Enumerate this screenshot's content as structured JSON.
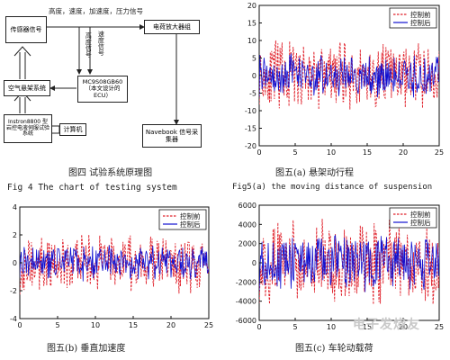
{
  "diagram": {
    "signals_top": "高度，速度，加速度，压力信号",
    "sensor_box": "传感器信号",
    "amp_box": "电荷放大器组",
    "height_signal": "高度信号",
    "speed_signal": "速度信号",
    "air_susp_box": "空气悬架系统",
    "ecu_box": "MC9S08GB60（本文设计的ECU）",
    "instron_box": "Instron8800 型岩控电液伺服试验系统",
    "computer_box": "计算机",
    "navebook_box": "Navebook 信号采集器",
    "caption_cn": "图四 试验系统原理图",
    "caption_en": "Fig 4 The chart of testing system"
  },
  "chart_data": [
    {
      "type": "line",
      "caption_cn": "图五(a) 悬架动行程",
      "caption_en": "Fig5(a) the moving distance of suspension",
      "xlim": [
        0,
        25
      ],
      "ylim": [
        -20,
        20
      ],
      "xticks": [
        "0",
        "5",
        "10",
        "15",
        "20",
        "25"
      ],
      "yticks": [
        "20",
        "15",
        "10",
        "5",
        "0",
        "-5",
        "-10",
        "-15",
        "-20"
      ],
      "legend_position": "top-right",
      "series": [
        {
          "name": "控制前",
          "color": "#e0202a",
          "dash": true,
          "amp": 11,
          "seed": 11
        },
        {
          "name": "控制后",
          "color": "#1010d0",
          "dash": false,
          "amp": 6.5,
          "seed": 37
        }
      ]
    },
    {
      "type": "line",
      "caption_cn": "图五(b) 垂直加速度",
      "xlim": [
        0,
        25
      ],
      "ylim": [
        -4,
        4
      ],
      "xticks": [
        "0",
        "5",
        "10",
        "15",
        "20",
        "25"
      ],
      "yticks": [
        "4",
        "2",
        "0",
        "-2",
        "-4"
      ],
      "legend_position": "top-right",
      "series": [
        {
          "name": "控制前",
          "color": "#e0202a",
          "dash": true,
          "amp": 2.3,
          "seed": 53
        },
        {
          "name": "控制后",
          "color": "#1010d0",
          "dash": false,
          "amp": 1.5,
          "seed": 71
        }
      ]
    },
    {
      "type": "line",
      "caption_cn": "图五(c) 车轮动载荷",
      "xlim": [
        0,
        25
      ],
      "ylim": [
        -6000,
        6000
      ],
      "xticks": [
        "0",
        "5",
        "10",
        "15",
        "20",
        "25"
      ],
      "yticks": [
        "6000",
        "4000",
        "2000",
        "0",
        "-2000",
        "-4000",
        "-6000"
      ],
      "legend_position": "top-right",
      "series": [
        {
          "name": "控制前",
          "color": "#e0202a",
          "dash": true,
          "amp": 4800,
          "seed": 89
        },
        {
          "name": "控制后",
          "color": "#1010d0",
          "dash": false,
          "amp": 3300,
          "seed": 97
        }
      ]
    }
  ],
  "watermark": "电子发烧友"
}
